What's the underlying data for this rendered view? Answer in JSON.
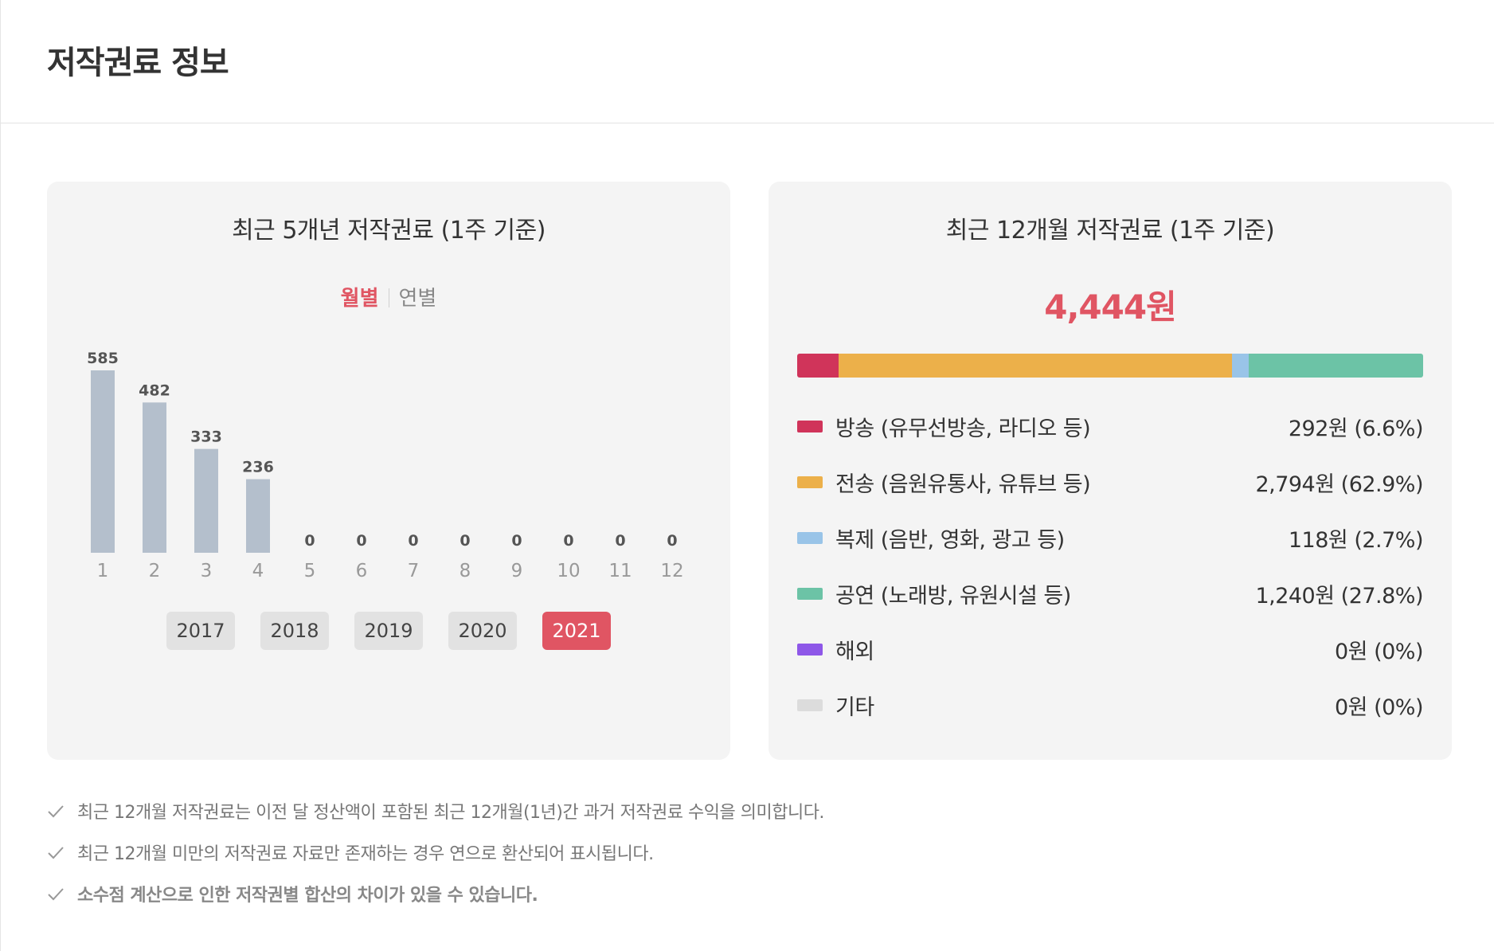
{
  "header": {
    "title": "저작권료 정보"
  },
  "left_panel": {
    "title": "최근 5개년 저작권료 (1주 기준)",
    "toggle": {
      "active": "월별",
      "inactive": "연별"
    },
    "years": [
      "2017",
      "2018",
      "2019",
      "2020",
      "2021"
    ],
    "selected_year": "2021"
  },
  "right_panel": {
    "title": "최근 12개월 저작권료 (1주 기준)",
    "total": "4,444원",
    "legend": [
      {
        "label": "방송 (유무선방송, 라디오 등)",
        "value": "292원 (6.6%)",
        "color": "#d0345a",
        "percent": 6.6
      },
      {
        "label": "전송 (음원유통사, 유튜브 등)",
        "value": "2,794원 (62.9%)",
        "color": "#ecb04a",
        "percent": 62.9
      },
      {
        "label": "복제 (음반, 영화, 광고 등)",
        "value": "118원 (2.7%)",
        "color": "#99c4e8",
        "percent": 2.7
      },
      {
        "label": "공연 (노래방, 유원시설 등)",
        "value": "1,240원 (27.8%)",
        "color": "#6cc3a6",
        "percent": 27.8
      },
      {
        "label": "해외",
        "value": "0원 (0%)",
        "color": "#8e57e8",
        "percent": 0
      },
      {
        "label": "기타",
        "value": "0원 (0%)",
        "color": "#dcdcdc",
        "percent": 0
      }
    ]
  },
  "notes": [
    {
      "text": "최근 12개월 저작권료는 이전 달 정산액이 포함된 최근 12개월(1년)간 과거 저작권료 수익을 의미합니다.",
      "bold": false
    },
    {
      "text": "최근 12개월 미만의 저작권료 자료만 존재하는 경우 연으로 환산되어 표시됩니다.",
      "bold": false
    },
    {
      "text": "소수점 계산으로 인한 저작권별 합산의 차이가 있을 수 있습니다.",
      "bold": true
    }
  ],
  "chart_data": {
    "type": "bar",
    "categories": [
      "1",
      "2",
      "3",
      "4",
      "5",
      "6",
      "7",
      "8",
      "9",
      "10",
      "11",
      "12"
    ],
    "values": [
      585,
      482,
      333,
      236,
      0,
      0,
      0,
      0,
      0,
      0,
      0,
      0
    ],
    "title": "최근 5개년 저작권료 (1주 기준)",
    "xlabel": "",
    "ylabel": "",
    "ylim": [
      0,
      585
    ],
    "bar_color": "#b4bfcc",
    "grid": false
  }
}
